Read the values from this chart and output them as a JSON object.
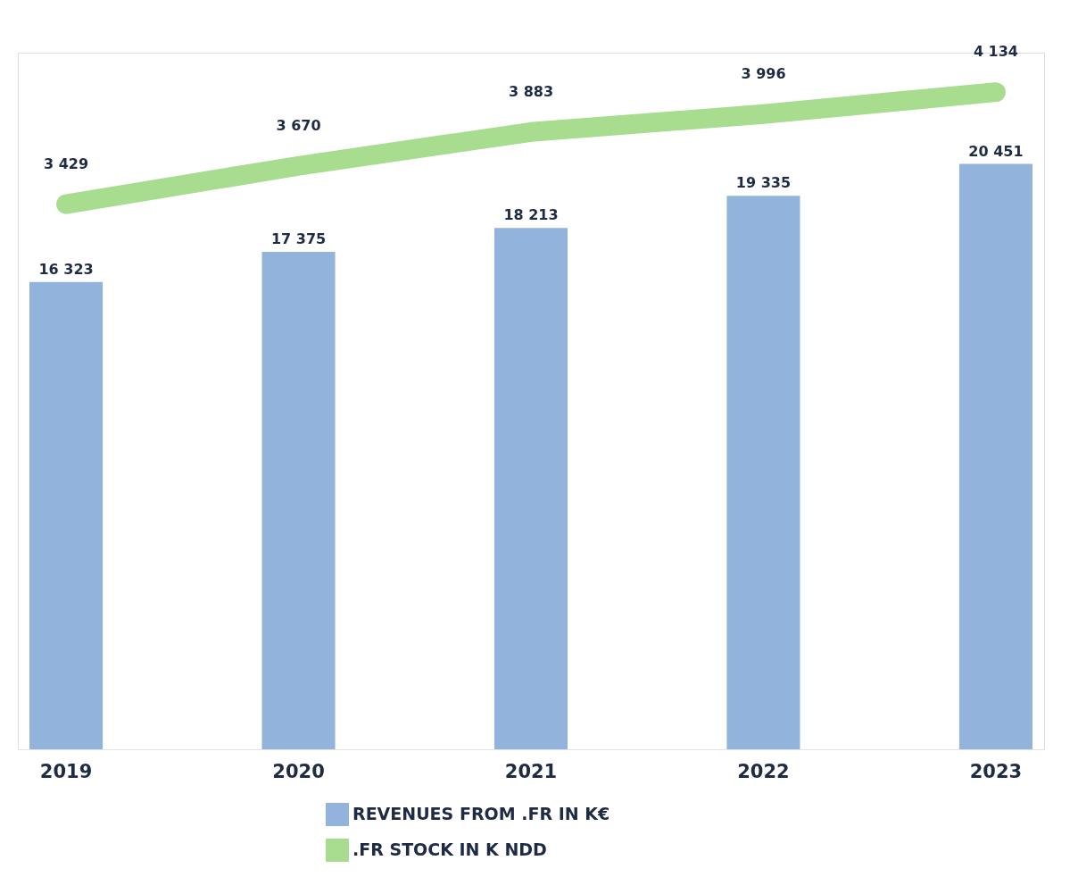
{
  "chart_data": {
    "type": "bar",
    "categories": [
      "2019",
      "2020",
      "2021",
      "2022",
      "2023"
    ],
    "series": [
      {
        "name": "REVENUES FROM .FR IN K€",
        "color": "#91b3dc",
        "values": [
          16323,
          17375,
          18213,
          19335,
          20451
        ],
        "value_labels": [
          "16 323",
          "17 375",
          "18 213",
          "19 335",
          "20 451"
        ]
      },
      {
        "name": ".FR STOCK IN K NDD",
        "color": "#a8dc8f",
        "type": "line",
        "axis": "y2",
        "values": [
          3429,
          3670,
          3883,
          3996,
          4134
        ],
        "value_labels": [
          "3 429",
          "3 670",
          "3 883",
          "3 996",
          "4 134"
        ]
      }
    ],
    "legend": "bottom"
  }
}
